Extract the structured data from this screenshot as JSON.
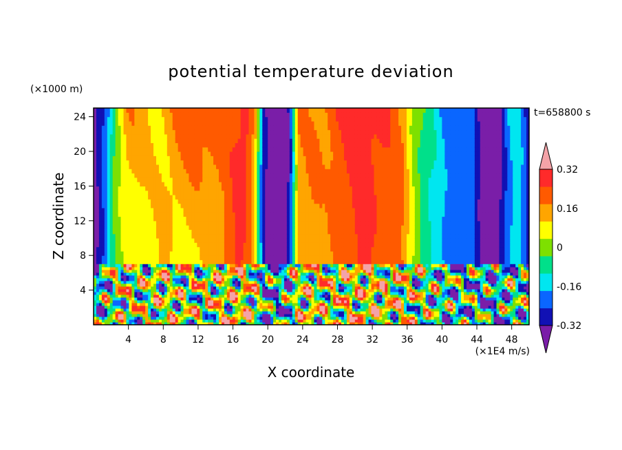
{
  "chart_data": {
    "type": "heatmap",
    "title": "potential temperature deviation",
    "xlabel": "X coordinate",
    "ylabel": "Z coordinate",
    "x_unit": "(×1E4 m/s)",
    "y_unit": "(×1000 m)",
    "time_label": "t=658800 s",
    "xlim": [
      0,
      50
    ],
    "ylim": [
      0,
      25
    ],
    "x_ticks": [
      4,
      8,
      12,
      16,
      20,
      24,
      28,
      32,
      36,
      40,
      44,
      48
    ],
    "y_ticks": [
      4,
      8,
      12,
      16,
      20,
      24
    ],
    "colorbar": {
      "tick_labels": [
        "0.32",
        "0.16",
        "0",
        "-0.16",
        "-0.32"
      ],
      "tick_values": [
        0.32,
        0.16,
        0,
        -0.16,
        -0.32
      ],
      "levels": [
        -0.4,
        -0.32,
        -0.24,
        -0.16,
        -0.08,
        0,
        0.08,
        0.16,
        0.24,
        0.32,
        0.4
      ],
      "colors": [
        "#7a1ea8",
        "#1111b4",
        "#0a66ff",
        "#00e6f0",
        "#00e08a",
        "#7ee000",
        "#ffff00",
        "#ffa500",
        "#ff5a00",
        "#ff2a2a",
        "#f4a3a8"
      ],
      "extend": "both"
    },
    "boundary_layer_top": 7,
    "upper_field_columns": {
      "x": [
        0,
        0.6,
        1.4,
        2.5,
        4,
        6,
        8,
        10,
        12,
        13.5,
        15,
        16.5,
        17.5,
        18.5,
        19.5,
        20.5,
        21.5,
        22.5,
        23.5,
        25,
        26.5,
        28,
        29.5,
        31,
        32.5,
        34,
        35.5,
        36.5,
        38,
        39.5,
        40.5,
        42,
        43.5,
        44.5,
        45.5,
        46.5,
        47.5,
        48.5,
        49.5,
        50
      ],
      "value_bottom": [
        -0.38,
        -0.3,
        -0.2,
        0.02,
        0.12,
        0.1,
        0.18,
        0.12,
        0.14,
        0.2,
        0.24,
        0.34,
        0.3,
        0.2,
        -0.3,
        -0.4,
        -0.4,
        -0.3,
        0.2,
        0.24,
        0.2,
        0.26,
        0.3,
        0.34,
        0.3,
        0.28,
        0.24,
        0.1,
        -0.04,
        -0.12,
        -0.18,
        -0.24,
        -0.2,
        -0.34,
        -0.4,
        -0.34,
        -0.2,
        -0.1,
        -0.2,
        -0.3
      ],
      "value_top": [
        -0.38,
        -0.3,
        -0.2,
        0.06,
        0.22,
        0.2,
        0.16,
        0.26,
        0.32,
        0.28,
        0.26,
        0.34,
        0.38,
        0.2,
        -0.3,
        -0.4,
        -0.4,
        -0.3,
        0.22,
        0.24,
        0.26,
        0.3,
        0.34,
        0.4,
        0.34,
        0.3,
        0.24,
        0.1,
        -0.04,
        -0.12,
        -0.18,
        -0.2,
        -0.22,
        -0.38,
        -0.4,
        -0.38,
        -0.2,
        -0.12,
        -0.22,
        -0.3
      ]
    }
  }
}
